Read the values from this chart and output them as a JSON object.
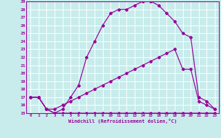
{
  "xlabel": "Windchill (Refroidissement éolien,°C)",
  "bg_color": "#c8ecec",
  "grid_color": "#ffffff",
  "line_color": "#990099",
  "xlim": [
    -0.5,
    23.5
  ],
  "ylim": [
    15,
    29
  ],
  "xticks": [
    0,
    1,
    2,
    3,
    4,
    5,
    6,
    7,
    8,
    9,
    10,
    11,
    12,
    13,
    14,
    15,
    16,
    17,
    18,
    19,
    20,
    21,
    22,
    23
  ],
  "yticks": [
    15,
    16,
    17,
    18,
    19,
    20,
    21,
    22,
    23,
    24,
    25,
    26,
    27,
    28,
    29
  ],
  "curve1_x": [
    0,
    1,
    2,
    3,
    4,
    5,
    6,
    7,
    8,
    9,
    10,
    11,
    12,
    13,
    14,
    15,
    16,
    17,
    18,
    19,
    20,
    21,
    22,
    23
  ],
  "curve1_y": [
    17.0,
    17.0,
    15.5,
    15.0,
    15.5,
    17.0,
    18.5,
    22.0,
    24.0,
    26.0,
    27.5,
    28.0,
    28.0,
    28.5,
    29.0,
    29.0,
    28.5,
    27.5,
    26.5,
    25.0,
    24.5,
    17.0,
    16.5,
    15.5
  ],
  "curve2_x": [
    0,
    1,
    2,
    3,
    4,
    5,
    6,
    7,
    8,
    9,
    10,
    11,
    12,
    13,
    14,
    15,
    16,
    17,
    18,
    19,
    20,
    21,
    22,
    23
  ],
  "curve2_y": [
    17.0,
    17.0,
    15.5,
    15.5,
    16.0,
    16.5,
    17.0,
    17.5,
    18.0,
    18.5,
    19.0,
    19.5,
    20.0,
    20.5,
    21.0,
    21.5,
    22.0,
    22.5,
    23.0,
    20.5,
    20.5,
    16.5,
    16.0,
    15.5
  ],
  "curve3_x": [
    0,
    1,
    2,
    3,
    4,
    5,
    6,
    7,
    8,
    9,
    10,
    11,
    12,
    13,
    14,
    15,
    16,
    17,
    18,
    19,
    20,
    21,
    22,
    23
  ],
  "curve3_y": [
    17.0,
    17.0,
    15.5,
    15.0,
    15.0,
    15.0,
    15.0,
    15.0,
    15.0,
    15.0,
    15.0,
    15.0,
    15.0,
    15.0,
    15.0,
    15.0,
    15.0,
    15.0,
    15.0,
    15.0,
    15.0,
    15.0,
    15.0,
    15.0
  ]
}
